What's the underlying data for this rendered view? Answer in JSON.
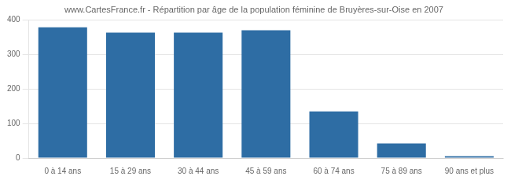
{
  "chart_data": {
    "type": "bar",
    "title": "www.CartesFrance.fr - Répartition par âge de la population féminine de Bruyères-sur-Oise en 2007",
    "categories": [
      "0 à 14 ans",
      "15 à 29 ans",
      "30 à 44 ans",
      "45 à 59 ans",
      "60 à 74 ans",
      "75 à 89 ans",
      "90 ans et plus"
    ],
    "values": [
      378,
      363,
      363,
      370,
      135,
      42,
      5
    ],
    "color": "#2e6da4",
    "ylim": [
      0,
      400
    ],
    "yticks": [
      0,
      100,
      200,
      300,
      400
    ],
    "grid": true
  }
}
